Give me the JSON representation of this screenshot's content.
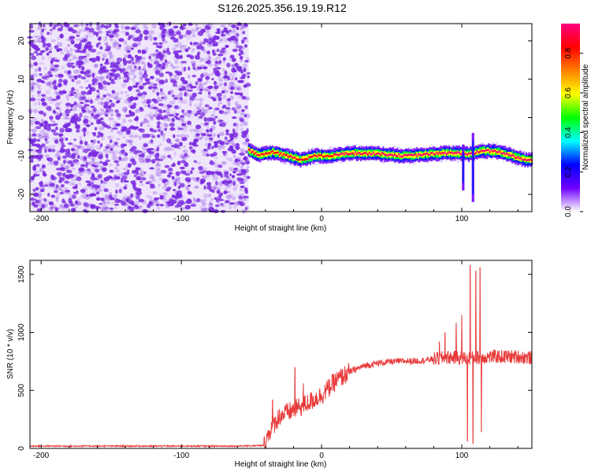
{
  "figure": {
    "title": "S126.2025.356.19.19.R12"
  },
  "chart_data": [
    {
      "type": "heatmap",
      "xlabel": "Height of straight line (km)",
      "ylabel": "Frequency (Hz)",
      "xlim": [
        -208,
        150
      ],
      "ylim": [
        -24.5,
        24.5
      ],
      "xticks": [
        -200,
        -100,
        0,
        100
      ],
      "yticks": [
        -20,
        -10,
        0,
        10,
        20
      ],
      "colorbar": {
        "label": "Normalized spectral amplitude",
        "range": [
          0,
          0.95
        ],
        "ticks": [
          0.0,
          0.2,
          0.4,
          0.6,
          0.8
        ],
        "tick_labels": [
          "0.0",
          "0.2",
          "0.4",
          "0.6",
          "0.8"
        ],
        "colormap": [
          "#ffffff",
          "#7000ff",
          "#0000ff",
          "#00ffff",
          "#00ff00",
          "#ffff00",
          "#ff8000",
          "#ff0000",
          "#ff0080"
        ]
      },
      "noise_region": {
        "x_range": [
          -208,
          -52
        ],
        "typical_amplitude": [
          0.0,
          0.15
        ],
        "dominant_color": "#7a2ae0"
      },
      "signal_track": {
        "x_range": [
          -52,
          150
        ],
        "frequency_hz": [
          {
            "x": -52,
            "y": -8.5
          },
          {
            "x": -45,
            "y": -9.8
          },
          {
            "x": -35,
            "y": -9.0
          },
          {
            "x": -25,
            "y": -9.9
          },
          {
            "x": -15,
            "y": -11.0
          },
          {
            "x": -5,
            "y": -10.0
          },
          {
            "x": 5,
            "y": -10.0
          },
          {
            "x": 20,
            "y": -9.3
          },
          {
            "x": 40,
            "y": -9.4
          },
          {
            "x": 60,
            "y": -10.0
          },
          {
            "x": 80,
            "y": -9.4
          },
          {
            "x": 95,
            "y": -9.2
          },
          {
            "x": 105,
            "y": -9.5
          },
          {
            "x": 115,
            "y": -8.7
          },
          {
            "x": 125,
            "y": -8.8
          },
          {
            "x": 135,
            "y": -9.8
          },
          {
            "x": 145,
            "y": -11.0
          },
          {
            "x": 150,
            "y": -11.0
          }
        ],
        "peak_amplitude": 0.9,
        "disturbances": [
          {
            "x": 101,
            "y_range": [
              -19,
              -7
            ]
          },
          {
            "x": 108,
            "y_range": [
              -22,
              -4
            ]
          }
        ]
      }
    },
    {
      "type": "line",
      "xlabel": "Height of straight line (km)",
      "ylabel": "SNR (10 * v/v)",
      "xlim": [
        -208,
        150
      ],
      "ylim": [
        0,
        1620
      ],
      "xticks": [
        -200,
        -100,
        0,
        100
      ],
      "yticks": [
        0,
        500,
        1000,
        1500
      ],
      "series": [
        {
          "color": "#e83a3a",
          "trend": [
            {
              "x": -208,
              "y": 20
            },
            {
              "x": -60,
              "y": 20
            },
            {
              "x": -41,
              "y": 25
            },
            {
              "x": -37,
              "y": 150
            },
            {
              "x": -30,
              "y": 280
            },
            {
              "x": -20,
              "y": 330
            },
            {
              "x": -10,
              "y": 390
            },
            {
              "x": 0,
              "y": 460
            },
            {
              "x": 10,
              "y": 580
            },
            {
              "x": 20,
              "y": 660
            },
            {
              "x": 30,
              "y": 710
            },
            {
              "x": 40,
              "y": 735
            },
            {
              "x": 50,
              "y": 748
            },
            {
              "x": 60,
              "y": 752
            },
            {
              "x": 70,
              "y": 755
            },
            {
              "x": 80,
              "y": 770
            },
            {
              "x": 90,
              "y": 785
            },
            {
              "x": 100,
              "y": 780
            },
            {
              "x": 110,
              "y": 780
            },
            {
              "x": 120,
              "y": 790
            },
            {
              "x": 130,
              "y": 790
            },
            {
              "x": 140,
              "y": 790
            },
            {
              "x": 150,
              "y": 780
            }
          ],
          "spikes": [
            {
              "x": -35,
              "y": 420
            },
            {
              "x": -19,
              "y": 700
            },
            {
              "x": -13,
              "y": 560
            },
            {
              "x": 84,
              "y": 920
            },
            {
              "x": 88,
              "y": 1000
            },
            {
              "x": 96,
              "y": 1080
            },
            {
              "x": 100,
              "y": 1150
            },
            {
              "x": 104,
              "y": 60
            },
            {
              "x": 106,
              "y": 1580
            },
            {
              "x": 108,
              "y": 40
            },
            {
              "x": 110,
              "y": 1530
            },
            {
              "x": 113,
              "y": 1560
            },
            {
              "x": 114,
              "y": 140
            }
          ]
        }
      ]
    }
  ]
}
